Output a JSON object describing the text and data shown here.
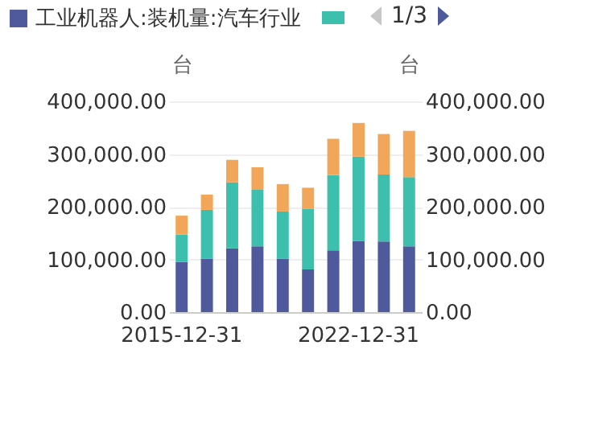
{
  "chart_data": {
    "type": "bar",
    "stacked": true,
    "categories": [
      "2015-12-31",
      null,
      null,
      null,
      null,
      null,
      null,
      "2022-12-31",
      null,
      null
    ],
    "series": [
      {
        "name": "工业机器人:装机量:汽车行业",
        "color": "#4e5a9b",
        "values": [
          95000,
          101000,
          121000,
          125000,
          101000,
          81000,
          117000,
          135000,
          134000,
          125000
        ]
      },
      {
        "color": "#3dbfae",
        "values": [
          52000,
          93000,
          125000,
          107000,
          90000,
          115000,
          143000,
          160000,
          127000,
          131000
        ]
      },
      {
        "color": "#f2a65a",
        "values": [
          36000,
          29000,
          43000,
          43000,
          52000,
          40000,
          69000,
          64000,
          77000,
          88000
        ]
      }
    ],
    "ylabel": "台",
    "y2label": "台",
    "ylim": [
      0,
      400000
    ],
    "yticks": [
      {
        "value": 0,
        "label": "0.00"
      },
      {
        "value": 100000,
        "label": "100,000.00"
      },
      {
        "value": 200000,
        "label": "200,000.00"
      },
      {
        "value": 300000,
        "label": "300,000.00"
      },
      {
        "value": 400000,
        "label": "400,000.00"
      }
    ],
    "y2lim": [
      0,
      400000
    ],
    "y2ticks": [
      {
        "value": 0,
        "label": "0.00"
      },
      {
        "value": 100000,
        "label": "100,000.00"
      },
      {
        "value": 200000,
        "label": "200,000.00"
      },
      {
        "value": 300000,
        "label": "300,000.00"
      },
      {
        "value": 400000,
        "label": "400,000.00"
      }
    ],
    "grid": "y",
    "legend": "top",
    "annotations": [
      "1/3"
    ]
  }
}
